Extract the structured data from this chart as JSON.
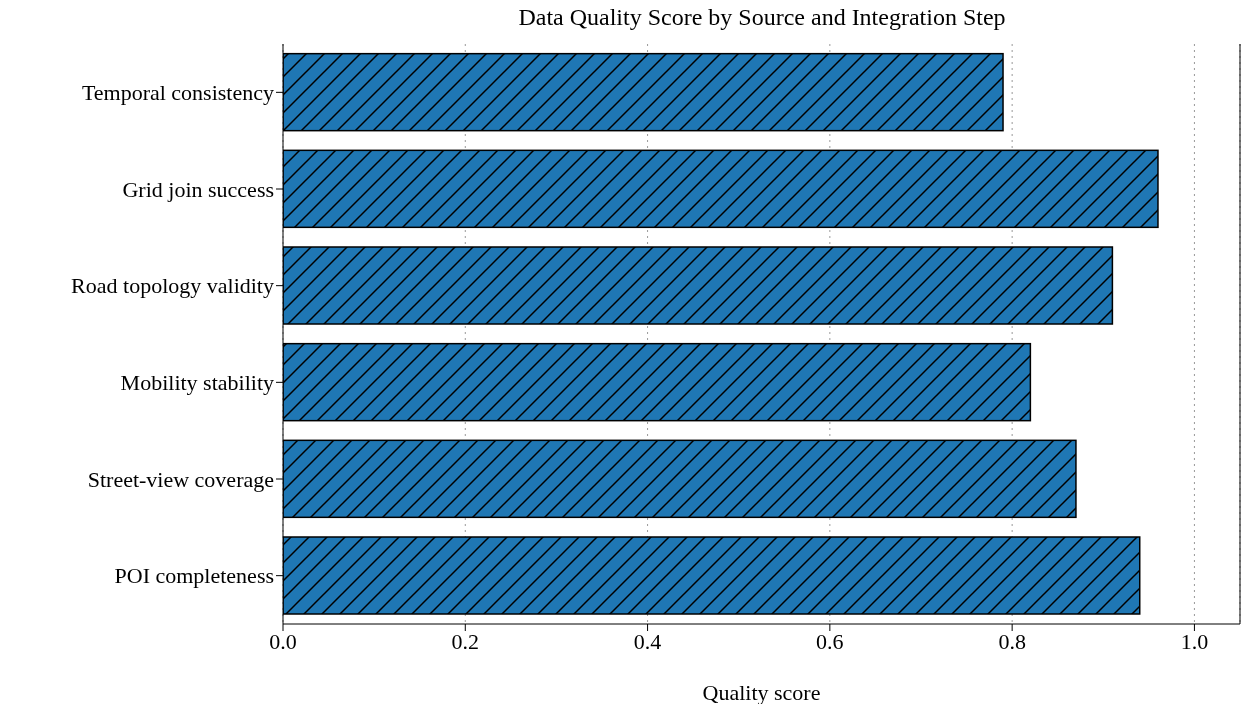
{
  "chart_data": {
    "type": "bar",
    "orientation": "horizontal",
    "title": "Data Quality Score by Source and Integration Step",
    "xlabel": "Quality score",
    "categories": [
      "Temporal consistency",
      "Grid join success",
      "Road topology validity",
      "Mobility stability",
      "Street-view coverage",
      "POI completeness"
    ],
    "values": [
      0.79,
      0.96,
      0.91,
      0.82,
      0.87,
      0.94
    ],
    "color": "#1f77b4",
    "xlim": [
      0,
      1.05
    ],
    "xticks": [
      {
        "value": 0,
        "label": "0.0"
      },
      {
        "value": 0.2,
        "label": "0.2"
      },
      {
        "value": 0.4,
        "label": "0.4"
      },
      {
        "value": 0.6,
        "label": "0.6"
      },
      {
        "value": 0.8,
        "label": "0.8"
      },
      {
        "value": 1,
        "label": "1.0"
      }
    ],
    "grid": "x"
  }
}
